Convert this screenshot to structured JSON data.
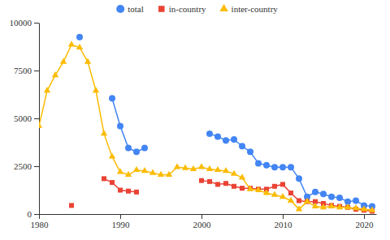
{
  "chart_data": {
    "type": "line",
    "x": [
      1980,
      1981,
      1982,
      1983,
      1984,
      1985,
      1986,
      1987,
      1988,
      1989,
      1990,
      1991,
      1992,
      1993,
      1994,
      1995,
      1996,
      1997,
      1998,
      1999,
      2000,
      2001,
      2002,
      2003,
      2004,
      2005,
      2006,
      2007,
      2008,
      2009,
      2010,
      2011,
      2012,
      2013,
      2014,
      2015,
      2016,
      2017,
      2018,
      2019,
      2020,
      2021
    ],
    "series": [
      {
        "name": "total",
        "color": "#4285f4",
        "marker": "circle",
        "values": [
          null,
          null,
          null,
          null,
          null,
          9250,
          null,
          null,
          null,
          6050,
          4600,
          3450,
          3250,
          3450,
          null,
          null,
          null,
          null,
          null,
          null,
          null,
          4200,
          4050,
          3850,
          3900,
          3550,
          3250,
          2650,
          2550,
          2450,
          2450,
          2450,
          1850,
          900,
          1150,
          1050,
          900,
          850,
          650,
          700,
          450,
          400
        ]
      },
      {
        "name": "in-country",
        "color": "#ea4335",
        "marker": "square",
        "values": [
          null,
          null,
          null,
          null,
          450,
          null,
          null,
          null,
          1850,
          1650,
          1250,
          1200,
          1150,
          null,
          null,
          null,
          null,
          null,
          null,
          null,
          1750,
          1700,
          1550,
          1600,
          1450,
          1350,
          1350,
          1300,
          1300,
          1450,
          1550,
          1100,
          700,
          650,
          650,
          550,
          450,
          400,
          350,
          250,
          200,
          150
        ]
      },
      {
        "name": "inter-country",
        "color": "#fbbc04",
        "marker": "triangle",
        "values": [
          4600,
          6450,
          7250,
          7950,
          8850,
          8700,
          7950,
          6450,
          4200,
          3000,
          2200,
          2050,
          2300,
          2250,
          2150,
          2050,
          2050,
          2450,
          2400,
          2350,
          2450,
          2350,
          2300,
          2250,
          2100,
          1900,
          1300,
          1250,
          1100,
          1000,
          900,
          700,
          250,
          650,
          400,
          350,
          400,
          350,
          350,
          300,
          250,
          200
        ]
      }
    ],
    "xlim": [
      1980,
      2021.5
    ],
    "xticks": [
      1980,
      1990,
      2000,
      2010,
      2020
    ],
    "ylim": [
      0,
      10000
    ],
    "yticks": [
      0,
      2500,
      5000,
      7500,
      10000
    ],
    "grid": false,
    "legend": "top"
  }
}
